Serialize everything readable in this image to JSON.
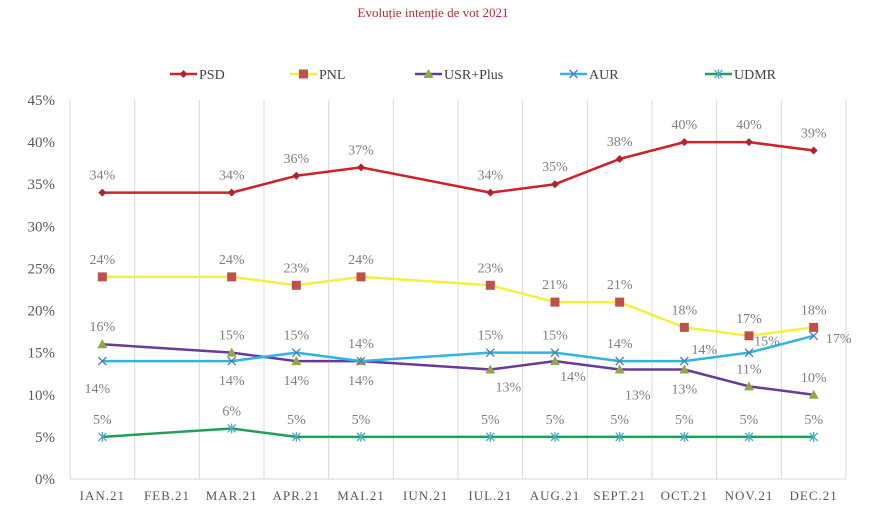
{
  "chart_data": {
    "type": "line",
    "title": "Evoluție intenție de vot 2021",
    "xlabel": "",
    "ylabel": "",
    "ylim": [
      0,
      45
    ],
    "y_ticks": [
      "0%",
      "5%",
      "10%",
      "15%",
      "20%",
      "25%",
      "30%",
      "35%",
      "40%",
      "45%"
    ],
    "grid": "vertical",
    "legend": "top",
    "categories": [
      "IAN.21",
      "FEB.21",
      "MAR.21",
      "APR.21",
      "MAI.21",
      "IUN.21",
      "IUL.21",
      "AUG.21",
      "SEPT.21",
      "OCT.21",
      "NOV.21",
      "DEC.21"
    ],
    "series": [
      {
        "name": "PSD",
        "color": "#d0202a",
        "marker": "diamond",
        "marker_color": "#b0252c",
        "values": [
          34,
          null,
          34,
          36,
          37,
          null,
          34,
          35,
          38,
          40,
          40,
          39
        ]
      },
      {
        "name": "PNL",
        "color": "#f5f03c",
        "marker": "square",
        "marker_color": "#c0504d",
        "values": [
          24,
          null,
          24,
          23,
          24,
          null,
          23,
          21,
          21,
          18,
          17,
          18
        ]
      },
      {
        "name": "USR+Plus",
        "color": "#6a3a9a",
        "marker": "triangle",
        "marker_color": "#8fa84a",
        "values": [
          16,
          null,
          15,
          14,
          14,
          null,
          13,
          14,
          13,
          13,
          11,
          10
        ]
      },
      {
        "name": "AUR",
        "color": "#2fb4e6",
        "marker": "x",
        "marker_color": "#4a7ab8",
        "values": [
          14,
          null,
          14,
          15,
          14,
          null,
          15,
          15,
          14,
          14,
          15,
          17
        ]
      },
      {
        "name": "UDMR",
        "color": "#1fa05a",
        "marker": "star",
        "marker_color": "#4bacc6",
        "values": [
          5,
          null,
          6,
          5,
          5,
          null,
          5,
          5,
          5,
          5,
          5,
          5
        ]
      }
    ]
  }
}
